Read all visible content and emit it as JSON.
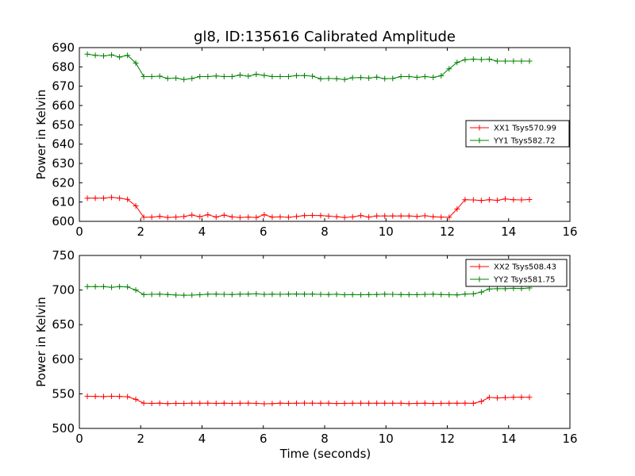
{
  "figure": {
    "title": "gl8, ID:135616 Calibrated Amplitude",
    "xlabel": "Time (seconds)"
  },
  "chart_data": [
    {
      "type": "line",
      "title": "gl8, ID:135616 Calibrated Amplitude",
      "xlabel": "",
      "ylabel": "Power in Kelvin",
      "xlim": [
        0,
        16
      ],
      "ylim": [
        600,
        690
      ],
      "xticks": [
        "0",
        "2",
        "4",
        "6",
        "8",
        "10",
        "12",
        "14",
        "16"
      ],
      "yticks": [
        "600",
        "610",
        "620",
        "630",
        "640",
        "650",
        "660",
        "670",
        "680",
        "690"
      ],
      "grid": false,
      "legend_position": "right",
      "x": [
        0.26,
        0.52,
        0.79,
        1.05,
        1.31,
        1.57,
        1.84,
        2.1,
        2.36,
        2.62,
        2.88,
        3.15,
        3.41,
        3.67,
        3.93,
        4.19,
        4.46,
        4.72,
        4.98,
        5.24,
        5.51,
        5.77,
        6.03,
        6.29,
        6.55,
        6.82,
        7.08,
        7.34,
        7.6,
        7.87,
        8.13,
        8.39,
        8.65,
        8.91,
        9.18,
        9.44,
        9.7,
        9.96,
        10.22,
        10.49,
        10.75,
        11.01,
        11.27,
        11.54,
        11.8,
        12.06,
        12.32,
        12.58,
        12.85,
        13.11,
        13.37,
        13.63,
        13.89,
        14.16,
        14.42,
        14.68
      ],
      "series": [
        {
          "name": "XX1 Tsys570.99",
          "color": "#ff0000",
          "values": [
            612.0,
            612.0,
            612.0,
            612.4,
            612.0,
            611.4,
            608.0,
            602.1,
            602.2,
            602.6,
            602.0,
            602.2,
            602.5,
            603.3,
            602.4,
            603.4,
            602.2,
            603.2,
            602.3,
            602.0,
            602.2,
            602.0,
            603.4,
            602.2,
            602.3,
            602.1,
            602.5,
            603.0,
            603.1,
            603.0,
            602.7,
            602.4,
            602.0,
            602.3,
            603.0,
            602.2,
            602.8,
            602.8,
            602.8,
            602.8,
            602.8,
            602.5,
            602.9,
            602.4,
            602.2,
            602.1,
            606.4,
            611.2,
            611.1,
            610.8,
            611.2,
            610.9,
            611.6,
            611.2,
            611.1,
            611.3
          ]
        },
        {
          "name": "YY1 Tsys582.72",
          "color": "#008000",
          "values": [
            686.6,
            686.0,
            685.7,
            686.2,
            685.1,
            686.0,
            682.0,
            675.0,
            675.0,
            675.2,
            674.0,
            674.2,
            673.5,
            674.0,
            675.0,
            675.0,
            675.3,
            675.0,
            675.0,
            675.8,
            675.2,
            676.2,
            675.6,
            675.0,
            675.0,
            675.0,
            675.5,
            675.5,
            675.2,
            673.8,
            674.0,
            673.9,
            673.5,
            674.4,
            674.5,
            674.2,
            674.7,
            673.9,
            674.0,
            675.0,
            675.0,
            674.6,
            675.0,
            674.6,
            675.4,
            679.0,
            682.3,
            683.7,
            684.0,
            683.8,
            684.0,
            683.0,
            683.0,
            683.0,
            683.0,
            683.0
          ]
        }
      ]
    },
    {
      "type": "line",
      "title": "",
      "xlabel": "Time (seconds)",
      "ylabel": "Power in Kelvin",
      "xlim": [
        0,
        16
      ],
      "ylim": [
        500,
        750
      ],
      "xticks": [
        "0",
        "2",
        "4",
        "6",
        "8",
        "10",
        "12",
        "14",
        "16"
      ],
      "yticks": [
        "500",
        "550",
        "600",
        "650",
        "700",
        "750"
      ],
      "grid": false,
      "legend_position": "top-right",
      "x": [
        0.26,
        0.52,
        0.79,
        1.05,
        1.31,
        1.57,
        1.84,
        2.1,
        2.36,
        2.62,
        2.88,
        3.15,
        3.41,
        3.67,
        3.93,
        4.19,
        4.46,
        4.72,
        4.98,
        5.24,
        5.51,
        5.77,
        6.03,
        6.29,
        6.55,
        6.82,
        7.08,
        7.34,
        7.6,
        7.87,
        8.13,
        8.39,
        8.65,
        8.91,
        9.18,
        9.44,
        9.7,
        9.96,
        10.22,
        10.49,
        10.75,
        11.01,
        11.27,
        11.54,
        11.8,
        12.06,
        12.32,
        12.58,
        12.85,
        13.11,
        13.37,
        13.63,
        13.89,
        14.16,
        14.42,
        14.68
      ],
      "series": [
        {
          "name": "XX2 Tsys508.43",
          "color": "#ff0000",
          "values": [
            546.5,
            546.3,
            546.0,
            546.5,
            546.2,
            545.8,
            542.0,
            536.5,
            536.2,
            536.5,
            535.8,
            536.2,
            536.1,
            536.4,
            536.3,
            536.5,
            536.2,
            536.5,
            536.1,
            536.3,
            536.5,
            536.2,
            535.6,
            535.8,
            536.5,
            536.2,
            536.4,
            536.6,
            536.5,
            536.3,
            536.5,
            536.0,
            536.2,
            536.3,
            536.5,
            536.3,
            536.4,
            536.5,
            536.3,
            536.4,
            535.8,
            536.2,
            536.5,
            536.0,
            536.2,
            536.3,
            536.4,
            536.5,
            536.2,
            539.0,
            544.8,
            544.0,
            544.5,
            545.0,
            545.1,
            545.0
          ]
        },
        {
          "name": "YY2 Tsys581.75",
          "color": "#008000",
          "values": [
            705.0,
            705.0,
            705.0,
            704.0,
            705.0,
            704.5,
            700.0,
            693.5,
            693.8,
            694.0,
            693.5,
            692.8,
            692.5,
            692.7,
            693.2,
            694.0,
            694.2,
            693.8,
            693.6,
            694.0,
            694.2,
            694.5,
            693.7,
            694.0,
            693.8,
            694.1,
            694.3,
            694.0,
            694.2,
            693.8,
            693.6,
            693.9,
            693.2,
            693.4,
            693.2,
            693.5,
            693.6,
            694.0,
            693.8,
            693.5,
            693.4,
            693.3,
            693.7,
            694.0,
            693.5,
            693.2,
            693.0,
            694.2,
            694.5,
            697.0,
            701.5,
            702.0,
            702.0,
            702.5,
            702.2,
            703.0
          ]
        }
      ]
    }
  ]
}
